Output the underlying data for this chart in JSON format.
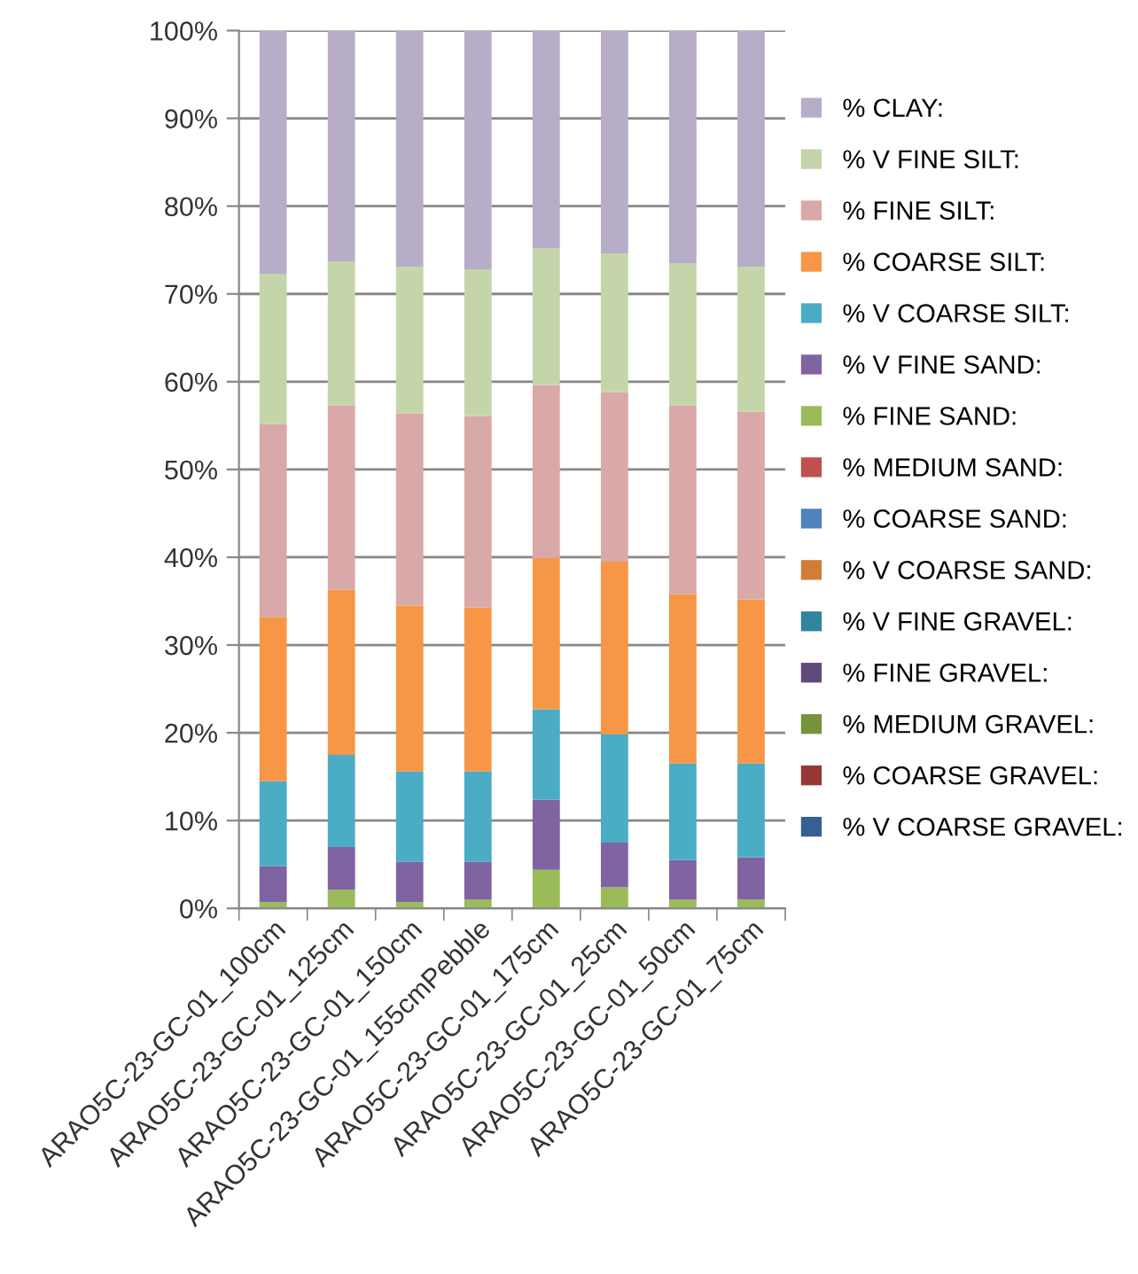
{
  "chart_data": {
    "type": "bar",
    "stacked": true,
    "categories": [
      "ARAO5C-23-GC-01_100cm",
      "ARAO5C-23-GC-01_125cm",
      "ARAO5C-23-GC-01_150cm",
      "ARAO5C-23-GC-01_155cmPebble",
      "ARAO5C-23-GC-01_175cm",
      "ARAO5C-23-GC-01_25cm",
      "ARAO5C-23-GC-01_50cm",
      "ARAO5C-23-GC-01_75cm"
    ],
    "series": [
      {
        "name": "% V COARSE GRAVEL:",
        "color": "#376092",
        "values": [
          0,
          0,
          0,
          0,
          0,
          0,
          0,
          0
        ]
      },
      {
        "name": "% COARSE GRAVEL:",
        "color": "#953735",
        "values": [
          0,
          0,
          0,
          0,
          0,
          0,
          0,
          0
        ]
      },
      {
        "name": "% MEDIUM GRAVEL:",
        "color": "#77933c",
        "values": [
          0,
          0,
          0,
          0,
          0,
          0,
          0,
          0
        ]
      },
      {
        "name": "% FINE GRAVEL:",
        "color": "#604a7b",
        "values": [
          0,
          0,
          0,
          0,
          0,
          0,
          0,
          0
        ]
      },
      {
        "name": "% V FINE GRAVEL:",
        "color": "#31859c",
        "values": [
          0,
          0,
          0,
          0,
          0,
          0,
          0,
          0
        ]
      },
      {
        "name": "% V COARSE SAND:",
        "color": "#d07d3a",
        "values": [
          0,
          0,
          0,
          0,
          0,
          0,
          0,
          0
        ]
      },
      {
        "name": "% COARSE SAND:",
        "color": "#4f81bd",
        "values": [
          0,
          0,
          0,
          0,
          0,
          0,
          0,
          0
        ]
      },
      {
        "name": "% MEDIUM SAND:",
        "color": "#c0504d",
        "values": [
          0,
          0,
          0,
          0,
          0,
          0,
          0,
          0
        ]
      },
      {
        "name": "% FINE SAND:",
        "color": "#9bbb59",
        "values": [
          0.7,
          2.1,
          0.7,
          1.0,
          4.4,
          2.4,
          1.0,
          1.0
        ]
      },
      {
        "name": "% V FINE SAND:",
        "color": "#8064a2",
        "values": [
          4.1,
          4.9,
          4.6,
          4.3,
          8.0,
          5.1,
          4.5,
          4.8
        ]
      },
      {
        "name": "% V COARSE SILT:",
        "color": "#4bacc6",
        "values": [
          9.7,
          10.5,
          10.3,
          10.3,
          10.3,
          12.3,
          11.0,
          10.7
        ]
      },
      {
        "name": "% COARSE SILT:",
        "color": "#f79646",
        "values": [
          18.7,
          18.8,
          18.9,
          18.7,
          17.2,
          19.7,
          19.3,
          18.7
        ]
      },
      {
        "name": "% FINE SILT:",
        "color": "#d9a8a8",
        "values": [
          22.0,
          21.0,
          21.9,
          21.8,
          19.7,
          19.3,
          21.5,
          21.4
        ]
      },
      {
        "name": "% V FINE SILT:",
        "color": "#c4d6a9",
        "values": [
          17.1,
          16.4,
          16.7,
          16.7,
          15.6,
          15.8,
          16.2,
          16.5
        ]
      },
      {
        "name": "% CLAY:",
        "color": "#b8adc9",
        "values": [
          27.7,
          26.3,
          26.9,
          27.2,
          24.8,
          25.4,
          26.5,
          26.9
        ]
      }
    ],
    "ylim": [
      0,
      100
    ],
    "yticks": [
      {
        "value": 0,
        "label": "0%"
      },
      {
        "value": 10,
        "label": "10%"
      },
      {
        "value": 20,
        "label": "20%"
      },
      {
        "value": 30,
        "label": "30%"
      },
      {
        "value": 40,
        "label": "40%"
      },
      {
        "value": 50,
        "label": "50%"
      },
      {
        "value": 60,
        "label": "60%"
      },
      {
        "value": 70,
        "label": "70%"
      },
      {
        "value": 80,
        "label": "80%"
      },
      {
        "value": 90,
        "label": "90%"
      },
      {
        "value": 100,
        "label": "100%"
      }
    ],
    "grid": "y",
    "legend": "right"
  }
}
